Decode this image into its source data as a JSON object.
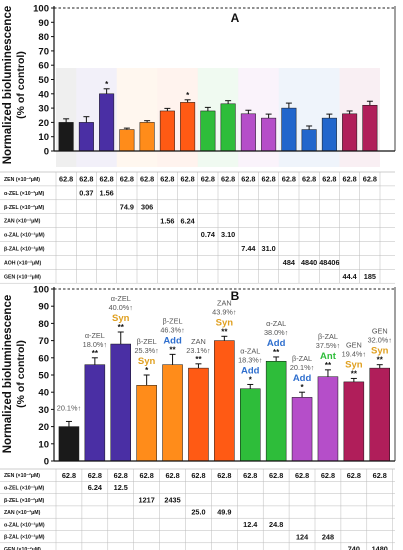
{
  "figure": {
    "ylabel_line1": "Normalized bioluminescence",
    "ylabel_line2": "(% of control)"
  },
  "chart_data": [
    {
      "type": "bar",
      "panel_label": "A",
      "ylim": [
        0,
        100
      ],
      "y_ticks": [
        0,
        10,
        20,
        30,
        40,
        50,
        60,
        70,
        80,
        90,
        100
      ],
      "grid": false,
      "legend": "none",
      "reference_line": {
        "value": 100,
        "style": "dashed"
      },
      "bars": [
        {
          "value": 20,
          "error": 2.5,
          "color": "#1a1a1a",
          "significant": false
        },
        {
          "value": 20,
          "error": 4,
          "color": "#4a2fa4",
          "significant": false
        },
        {
          "value": 40,
          "error": 3.5,
          "color": "#4a2fa4",
          "significant": true
        },
        {
          "value": 15,
          "error": 1,
          "color": "#ff8c1a",
          "significant": false
        },
        {
          "value": 20,
          "error": 1.2,
          "color": "#ff8c1a",
          "significant": false
        },
        {
          "value": 28,
          "error": 1.8,
          "color": "#ff5a14",
          "significant": false
        },
        {
          "value": 34,
          "error": 1.8,
          "color": "#ff5a14",
          "significant": true
        },
        {
          "value": 28,
          "error": 2.5,
          "color": "#2ebd3a",
          "significant": false
        },
        {
          "value": 33,
          "error": 2.2,
          "color": "#2ebd3a",
          "significant": false
        },
        {
          "value": 26,
          "error": 2.5,
          "color": "#b54ec9",
          "significant": false
        },
        {
          "value": 23,
          "error": 2.8,
          "color": "#b54ec9",
          "significant": false
        },
        {
          "value": 30,
          "error": 3.5,
          "color": "#2266cc",
          "significant": false
        },
        {
          "value": 15,
          "error": 2.5,
          "color": "#2266cc",
          "significant": false
        },
        {
          "value": 23,
          "error": 2.8,
          "color": "#2266cc",
          "significant": false
        },
        {
          "value": 26,
          "error": 2,
          "color": "#b01e5a",
          "significant": false
        },
        {
          "value": 32,
          "error": 2.8,
          "color": "#b01e5a",
          "significant": false
        }
      ],
      "table": {
        "rows": [
          {
            "label": "ZEN (×10⁻²μM)",
            "values": [
              "62.8",
              "62.8",
              "62.8",
              "62.8",
              "62.8",
              "62.8",
              "62.8",
              "62.8",
              "62.8",
              "62.8",
              "62.8",
              "62.8",
              "62.8",
              "62.8",
              "62.8",
              "62.8"
            ]
          },
          {
            "label": "α-ZEL (×10⁻²μM)",
            "values": [
              "",
              "0.37",
              "1.56",
              "",
              "",
              "",
              "",
              "",
              "",
              "",
              "",
              "",
              "",
              "",
              "",
              ""
            ]
          },
          {
            "label": "β-ZEL (×10⁻²μM)",
            "values": [
              "",
              "",
              "",
              "74.9",
              "306",
              "",
              "",
              "",
              "",
              "",
              "",
              "",
              "",
              "",
              "",
              ""
            ]
          },
          {
            "label": "ZAN (×10⁻²μM)",
            "values": [
              "",
              "",
              "",
              "",
              "",
              "1.56",
              "6.24",
              "",
              "",
              "",
              "",
              "",
              "",
              "",
              "",
              ""
            ]
          },
          {
            "label": "α-ZAL (×10⁻²μM)",
            "values": [
              "",
              "",
              "",
              "",
              "",
              "",
              "",
              "0.74",
              "3.10",
              "",
              "",
              "",
              "",
              "",
              "",
              ""
            ]
          },
          {
            "label": "β-ZAL (×10⁻²μM)",
            "values": [
              "",
              "",
              "",
              "",
              "",
              "",
              "",
              "",
              "",
              "7.44",
              "31.0",
              "",
              "",
              "",
              "",
              ""
            ]
          },
          {
            "label": "AOH (×10⁻²μM)",
            "values": [
              "",
              "",
              "",
              "",
              "",
              "",
              "",
              "",
              "",
              "",
              "",
              "484",
              "4840",
              "48406",
              "",
              ""
            ]
          },
          {
            "label": "GEN (×10⁻²μM)",
            "values": [
              "",
              "",
              "",
              "",
              "",
              "",
              "",
              "",
              "",
              "",
              "",
              "",
              "",
              "",
              "44.4",
              "185"
            ]
          }
        ]
      }
    },
    {
      "type": "bar",
      "panel_label": "B",
      "ylim": [
        0,
        100
      ],
      "y_ticks": [
        0,
        10,
        20,
        30,
        40,
        50,
        60,
        70,
        80,
        90,
        100
      ],
      "grid": false,
      "legend": "none",
      "reference_line": {
        "value": 100,
        "style": "dashed"
      },
      "bars": [
        {
          "value": 20,
          "error": 3,
          "color": "#1a1a1a",
          "stars": "",
          "interaction": "",
          "interaction_color": "",
          "note": "20.1%↑"
        },
        {
          "value": 56,
          "error": 4,
          "color": "#4a2fa4",
          "stars": "**",
          "interaction": "",
          "interaction_color": "",
          "note": "α-ZEL\n18.0%↑"
        },
        {
          "value": 68,
          "error": 7,
          "color": "#4a2fa4",
          "stars": "**",
          "interaction": "Syn",
          "interaction_color": "#e0a020",
          "note": "α-ZEL\n40.0%↑"
        },
        {
          "value": 44,
          "error": 6,
          "color": "#ff8c1a",
          "stars": "*",
          "interaction": "Syn",
          "interaction_color": "#e0a020",
          "note": "β-ZEL\n25.3%↑"
        },
        {
          "value": 56,
          "error": 6,
          "color": "#ff8c1a",
          "stars": "**",
          "interaction": "Add",
          "interaction_color": "#2f6fce",
          "note": "β-ZEL\n46.3%↑"
        },
        {
          "value": 54,
          "error": 2.5,
          "color": "#ff5a14",
          "stars": "**",
          "interaction": "",
          "interaction_color": "",
          "note": "ZAN\n23.1%↑"
        },
        {
          "value": 70,
          "error": 2.5,
          "color": "#ff5a14",
          "stars": "**",
          "interaction": "Syn",
          "interaction_color": "#e0a020",
          "note": "ZAN\n43.9%↑"
        },
        {
          "value": 42,
          "error": 2.5,
          "color": "#2ebd3a",
          "stars": "*",
          "interaction": "Add",
          "interaction_color": "#2f6fce",
          "note": "α-ZAL\n18.3%↑"
        },
        {
          "value": 58,
          "error": 2.5,
          "color": "#2ebd3a",
          "stars": "**",
          "interaction": "Add",
          "interaction_color": "#2f6fce",
          "note": "α-ZAL\n38.0%↑"
        },
        {
          "value": 37,
          "error": 3,
          "color": "#b54ec9",
          "stars": "*",
          "interaction": "Add",
          "interaction_color": "#2f6fce",
          "note": "β-ZAL\n20.1%↑"
        },
        {
          "value": 49,
          "error": 4,
          "color": "#b54ec9",
          "stars": "**",
          "interaction": "Ant",
          "interaction_color": "#2ebd3a",
          "note": "β-ZAL\n37.5%↑"
        },
        {
          "value": 46,
          "error": 2,
          "color": "#b01e5a",
          "stars": "**",
          "interaction": "Syn",
          "interaction_color": "#e0a020",
          "note": "GEN\n19.4%↑"
        },
        {
          "value": 54,
          "error": 2,
          "color": "#b01e5a",
          "stars": "**",
          "interaction": "Syn",
          "interaction_color": "#e0a020",
          "note": "GEN\n32.0%↑"
        }
      ],
      "table": {
        "rows": [
          {
            "label": "ZEN (×10⁻²μM)",
            "values": [
              "62.8",
              "62.8",
              "62.8",
              "62.8",
              "62.8",
              "62.8",
              "62.8",
              "62.8",
              "62.8",
              "62.8",
              "62.8",
              "62.8",
              "62.8"
            ]
          },
          {
            "label": "α-ZEL (×10⁻²μM)",
            "values": [
              "",
              "6.24",
              "12.5",
              "",
              "",
              "",
              "",
              "",
              "",
              "",
              "",
              "",
              ""
            ]
          },
          {
            "label": "β-ZEL (×10⁻²μM)",
            "values": [
              "",
              "",
              "",
              "1217",
              "2435",
              "",
              "",
              "",
              "",
              "",
              "",
              "",
              ""
            ]
          },
          {
            "label": "ZAN (×10⁻²μM)",
            "values": [
              "",
              "",
              "",
              "",
              "",
              "25.0",
              "49.9",
              "",
              "",
              "",
              "",
              "",
              ""
            ]
          },
          {
            "label": "α-ZAL (×10⁻²μM)",
            "values": [
              "",
              "",
              "",
              "",
              "",
              "",
              "",
              "12.4",
              "24.8",
              "",
              "",
              "",
              ""
            ]
          },
          {
            "label": "β-ZAL (×10⁻²μM)",
            "values": [
              "",
              "",
              "",
              "",
              "",
              "",
              "",
              "",
              "",
              "124",
              "248",
              "",
              ""
            ]
          },
          {
            "label": "GEN (×10⁻²μM)",
            "values": [
              "",
              "",
              "",
              "",
              "",
              "",
              "",
              "",
              "",
              "",
              "",
              "740",
              "1480"
            ]
          }
        ]
      }
    }
  ]
}
